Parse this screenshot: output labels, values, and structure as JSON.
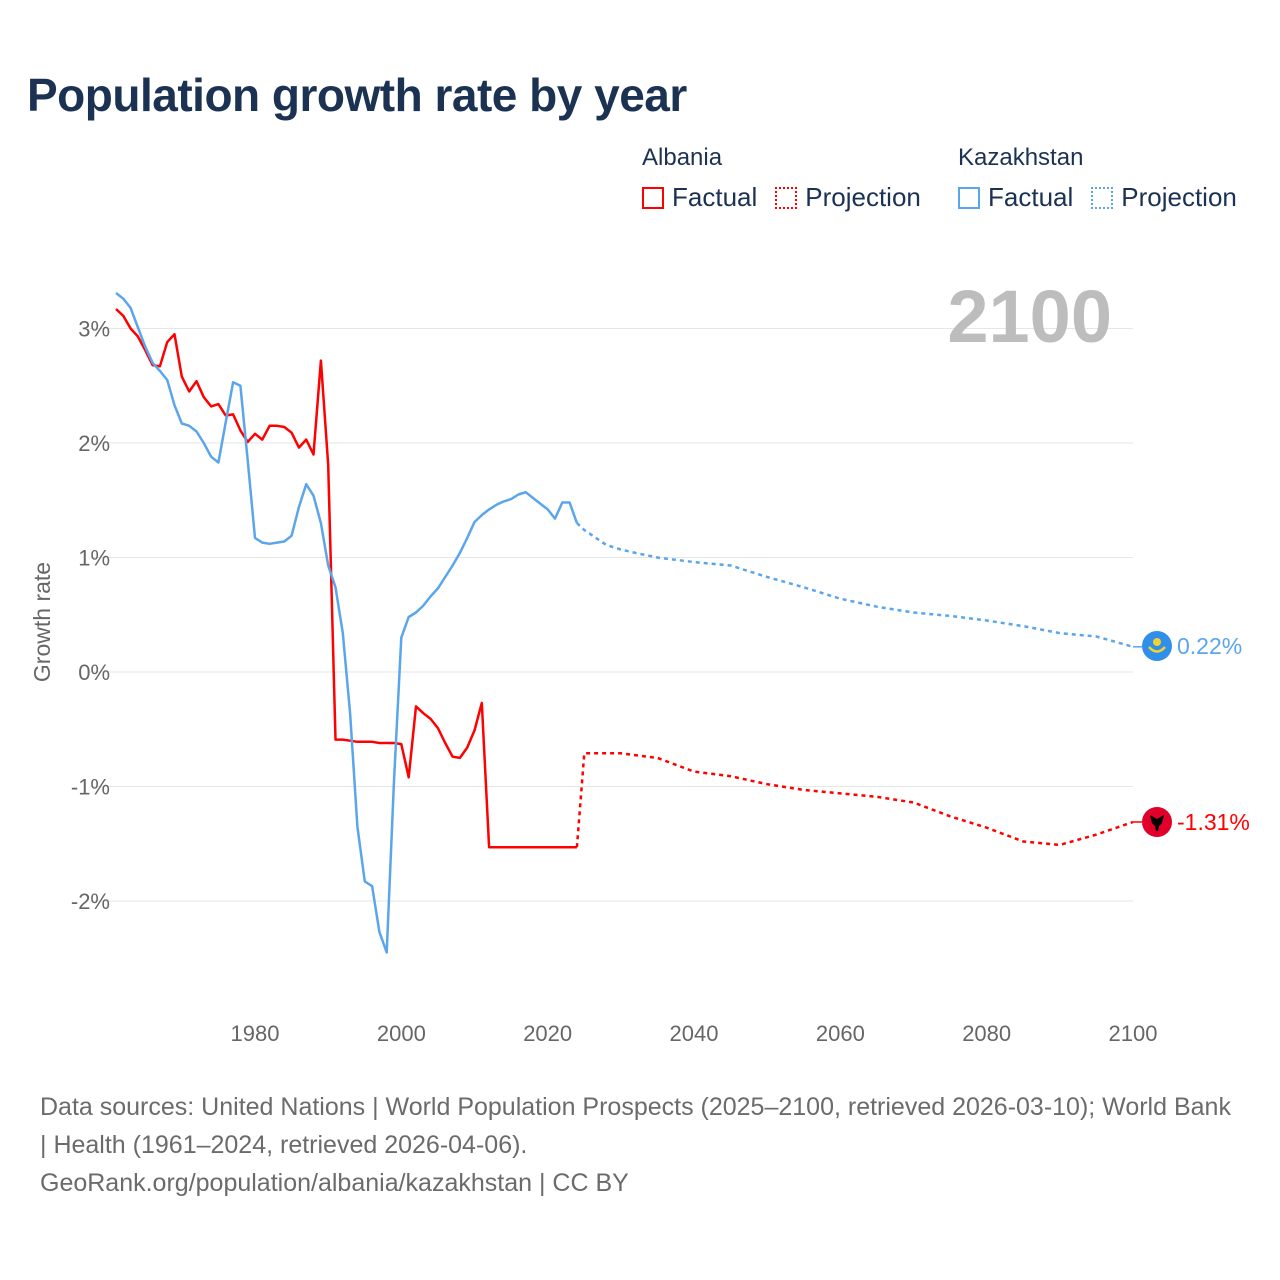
{
  "title": "Population growth rate by year",
  "legend": {
    "groups": [
      {
        "name": "Albania",
        "color": "#ff0000",
        "factual_label": "Factual",
        "projection_label": "Projection"
      },
      {
        "name": "Kazakhstan",
        "color": "#5aa5ec",
        "factual_label": "Factual",
        "projection_label": "Projection"
      }
    ]
  },
  "year_display": "2100",
  "footer": {
    "sources": "Data sources: United Nations | World Population Prospects (2025–2100, retrieved 2026-03-10); World Bank | Health (1961–2024, retrieved 2026-04-06).",
    "credit": "GeoRank.org/population/albania/kazakhstan | CC BY"
  },
  "chart_data": {
    "type": "line",
    "title": "Population growth rate by year",
    "xlabel": "",
    "ylabel": "Growth rate",
    "xlim": [
      1961,
      2100
    ],
    "ylim": [
      -2.9,
      3.5
    ],
    "x_ticks": [
      1980,
      2000,
      2020,
      2040,
      2060,
      2080,
      2100
    ],
    "y_ticks": [
      3,
      2,
      1,
      0,
      -1,
      -2
    ],
    "y_tick_labels": [
      "3%",
      "2%",
      "1%",
      "0%",
      "-1%",
      "-2%"
    ],
    "grid": true,
    "legend_placement": "top-right",
    "series": [
      {
        "name": "Albania",
        "color": "#ff0000",
        "end_label": "-1.31%",
        "factual": {
          "x": [
            1961,
            1962,
            1963,
            1964,
            1965,
            1966,
            1967,
            1968,
            1969,
            1970,
            1971,
            1972,
            1973,
            1974,
            1975,
            1976,
            1977,
            1978,
            1979,
            1980,
            1981,
            1982,
            1983,
            1984,
            1985,
            1986,
            1987,
            1988,
            1989,
            1990,
            1991,
            1992,
            1993,
            1994,
            1995,
            1996,
            1997,
            1998,
            1999,
            2000,
            2001,
            2002,
            2003,
            2004,
            2005,
            2006,
            2007,
            2008,
            2009,
            2010,
            2011,
            2012,
            2013,
            2014,
            2015,
            2016,
            2017,
            2018,
            2019,
            2020,
            2021,
            2022,
            2023,
            2024
          ],
          "y": [
            3.17,
            3.11,
            3.0,
            2.93,
            2.81,
            2.68,
            2.67,
            2.88,
            2.95,
            2.58,
            2.45,
            2.54,
            2.4,
            2.32,
            2.34,
            2.24,
            2.25,
            2.11,
            2.01,
            2.08,
            2.03,
            2.15,
            2.15,
            2.14,
            2.09,
            1.96,
            2.03,
            1.9,
            2.72,
            1.81,
            -0.59,
            -0.59,
            -0.6,
            -0.61,
            -0.61,
            -0.61,
            -0.62,
            -0.62,
            -0.62,
            -0.63,
            -0.92,
            -0.3,
            -0.36,
            -0.41,
            -0.49,
            -0.62,
            -0.74,
            -0.75,
            -0.66,
            -0.51,
            -0.27,
            -1.53,
            -1.53,
            -1.53,
            -1.53,
            -1.53,
            -1.53,
            -1.53,
            -1.53,
            -1.53,
            -1.53,
            -1.53,
            -1.53,
            -1.53
          ]
        },
        "projection": {
          "x": [
            2024,
            2025,
            2030,
            2035,
            2040,
            2045,
            2050,
            2055,
            2060,
            2065,
            2070,
            2075,
            2080,
            2085,
            2090,
            2095,
            2100
          ],
          "y": [
            -1.53,
            -0.71,
            -0.71,
            -0.75,
            -0.87,
            -0.91,
            -0.98,
            -1.03,
            -1.06,
            -1.09,
            -1.14,
            -1.26,
            -1.36,
            -1.48,
            -1.51,
            -1.42,
            -1.31
          ]
        }
      },
      {
        "name": "Kazakhstan",
        "color": "#5aa5ec",
        "end_label": "0.22%",
        "factual": {
          "x": [
            1961,
            1962,
            1963,
            1964,
            1965,
            1966,
            1967,
            1968,
            1969,
            1970,
            1971,
            1972,
            1973,
            1974,
            1975,
            1976,
            1977,
            1978,
            1979,
            1980,
            1981,
            1982,
            1983,
            1984,
            1985,
            1986,
            1987,
            1988,
            1989,
            1990,
            1991,
            1992,
            1993,
            1994,
            1995,
            1996,
            1997,
            1998,
            1999,
            2000,
            2001,
            2002,
            2003,
            2004,
            2005,
            2006,
            2007,
            2008,
            2009,
            2010,
            2011,
            2012,
            2013,
            2014,
            2015,
            2016,
            2017,
            2018,
            2019,
            2020,
            2021,
            2022,
            2023,
            2024
          ],
          "y": [
            3.31,
            3.26,
            3.18,
            3.01,
            2.84,
            2.7,
            2.63,
            2.55,
            2.33,
            2.17,
            2.15,
            2.1,
            2.0,
            1.88,
            1.83,
            2.18,
            2.53,
            2.5,
            1.85,
            1.17,
            1.13,
            1.12,
            1.13,
            1.14,
            1.19,
            1.44,
            1.64,
            1.54,
            1.3,
            0.93,
            0.74,
            0.34,
            -0.36,
            -1.35,
            -1.83,
            -1.87,
            -2.27,
            -2.45,
            -0.95,
            0.3,
            0.48,
            0.52,
            0.58,
            0.66,
            0.73,
            0.83,
            0.93,
            1.04,
            1.17,
            1.31,
            1.37,
            1.42,
            1.46,
            1.49,
            1.51,
            1.55,
            1.57,
            1.52,
            1.47,
            1.42,
            1.34,
            1.48,
            1.48,
            1.3
          ]
        },
        "projection": {
          "x": [
            2024,
            2025,
            2028,
            2030,
            2032,
            2035,
            2040,
            2045,
            2050,
            2055,
            2060,
            2065,
            2070,
            2075,
            2080,
            2085,
            2090,
            2095,
            2100
          ],
          "y": [
            1.3,
            1.24,
            1.11,
            1.07,
            1.04,
            1.0,
            0.96,
            0.93,
            0.83,
            0.74,
            0.64,
            0.57,
            0.52,
            0.49,
            0.45,
            0.4,
            0.34,
            0.31,
            0.22
          ]
        }
      }
    ]
  }
}
